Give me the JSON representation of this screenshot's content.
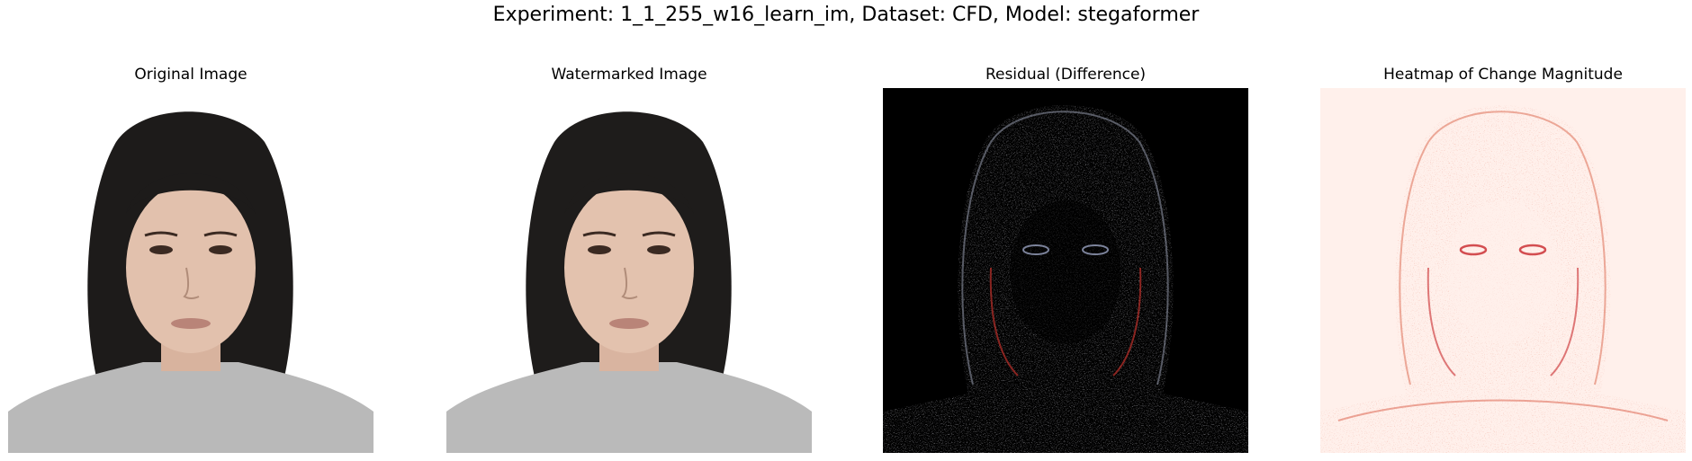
{
  "figure": {
    "title": "Experiment: 1_1_255_w16_learn_im, Dataset: CFD, Model: stegaformer"
  },
  "panels": [
    {
      "title": "Original Image",
      "kind": "photo"
    },
    {
      "title": "Watermarked Image",
      "kind": "photo"
    },
    {
      "title": "Residual (Difference)",
      "kind": "residual"
    },
    {
      "title": "Heatmap of Change Magnitude",
      "kind": "heatmap"
    }
  ],
  "colors": {
    "photo_background": "#ffffff",
    "hair": "#1d1b1a",
    "skin": "#e2c1ad",
    "shirt": "#b9b9b9",
    "residual_background": "#000000",
    "heatmap_background": "#fff0eb",
    "heatmap_accent": "#c8262a"
  }
}
